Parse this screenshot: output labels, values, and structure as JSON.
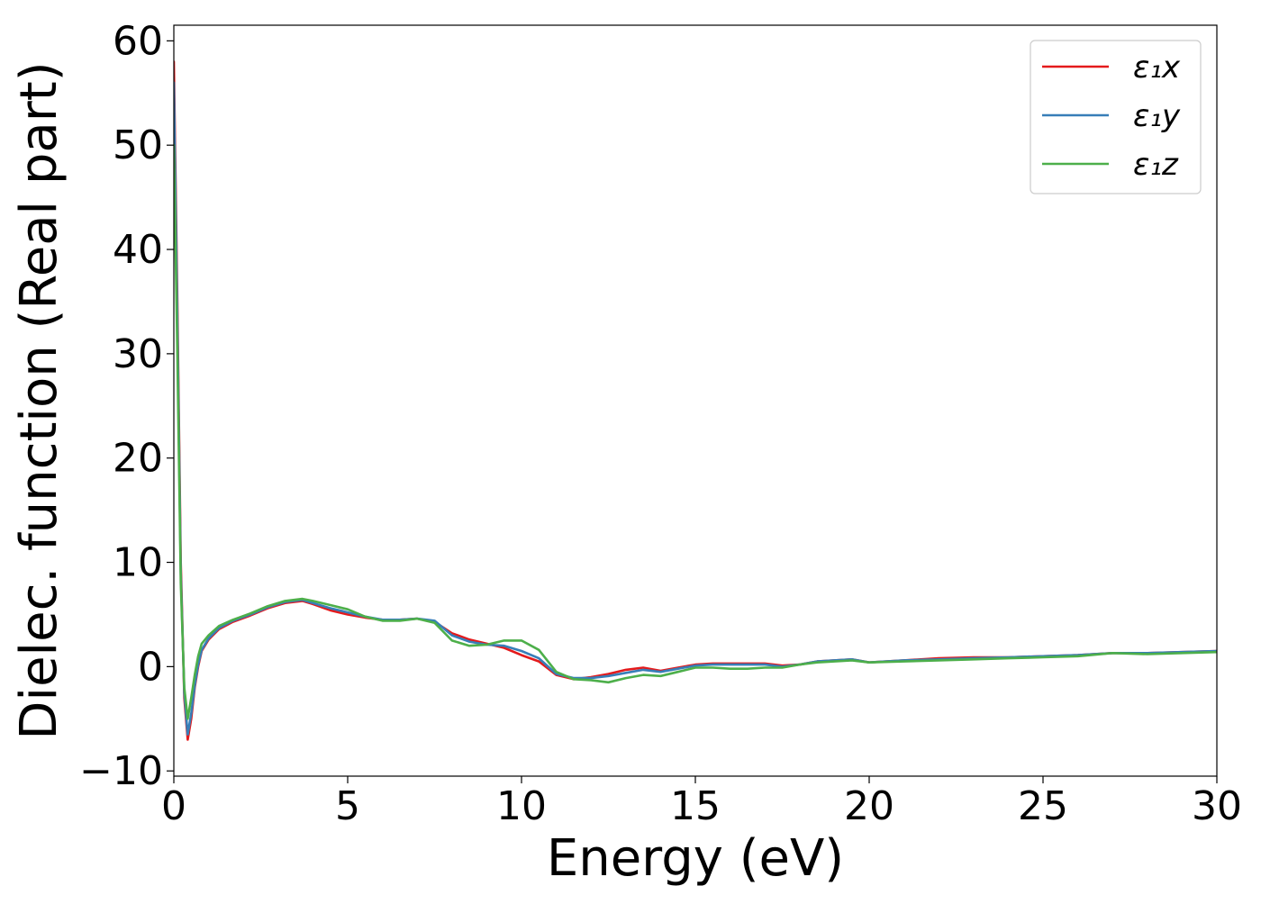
{
  "chart_data": {
    "type": "line",
    "xlabel": "Energy (eV)",
    "ylabel": "Dielec. function (Real part)",
    "xlim": [
      0,
      30
    ],
    "ylim": [
      -10.5,
      61.5
    ],
    "xticks": [
      0,
      5,
      10,
      15,
      20,
      25,
      30
    ],
    "yticks": [
      -10,
      0,
      10,
      20,
      30,
      40,
      50,
      60
    ],
    "xtick_labels": [
      "0",
      "5",
      "10",
      "15",
      "20",
      "25",
      "30"
    ],
    "ytick_labels": [
      "−10",
      "0",
      "10",
      "20",
      "30",
      "40",
      "50",
      "60"
    ],
    "grid": false,
    "legend_position": "top-right",
    "series": [
      {
        "name": "ε₁x",
        "color": "#e41a1c",
        "x": [
          0,
          0.1,
          0.2,
          0.3,
          0.4,
          0.5,
          0.6,
          0.7,
          0.8,
          1.0,
          1.3,
          1.7,
          2.2,
          2.7,
          3.2,
          3.7,
          4.0,
          4.5,
          5.0,
          5.5,
          6.0,
          6.5,
          7.0,
          7.5,
          8.0,
          8.5,
          9.0,
          9.5,
          10.0,
          10.5,
          11.0,
          11.5,
          12.0,
          12.5,
          13.0,
          13.5,
          14.0,
          14.5,
          15.0,
          15.5,
          16.0,
          16.5,
          17.0,
          17.5,
          18.0,
          18.5,
          19.0,
          19.5,
          20.0,
          21.0,
          22.0,
          23.0,
          24.0,
          25.0,
          26.0,
          27.0,
          28.0,
          29.0,
          30.0
        ],
        "y": [
          58,
          35,
          10,
          -3,
          -7,
          -5,
          -2,
          0,
          1.5,
          2.6,
          3.6,
          4.3,
          4.9,
          5.6,
          6.1,
          6.3,
          6.0,
          5.4,
          5.0,
          4.7,
          4.5,
          4.5,
          4.6,
          4.3,
          3.2,
          2.6,
          2.2,
          1.8,
          1.1,
          0.5,
          -0.8,
          -1.2,
          -1.0,
          -0.7,
          -0.3,
          -0.1,
          -0.4,
          -0.1,
          0.2,
          0.3,
          0.3,
          0.3,
          0.3,
          0.1,
          0.2,
          0.5,
          0.6,
          0.7,
          0.4,
          0.6,
          0.8,
          0.9,
          0.9,
          1.0,
          1.1,
          1.3,
          1.3,
          1.4,
          1.5
        ]
      },
      {
        "name": "ε₁y",
        "color": "#377eb8",
        "x": [
          0,
          0.1,
          0.2,
          0.3,
          0.4,
          0.5,
          0.6,
          0.7,
          0.8,
          1.0,
          1.3,
          1.7,
          2.2,
          2.7,
          3.2,
          3.7,
          4.0,
          4.5,
          5.0,
          5.5,
          6.0,
          6.5,
          7.0,
          7.5,
          8.0,
          8.5,
          9.0,
          9.5,
          10.0,
          10.5,
          11.0,
          11.5,
          12.0,
          12.5,
          13.0,
          13.5,
          14.0,
          14.5,
          15.0,
          15.5,
          16.0,
          16.5,
          17.0,
          17.5,
          18.0,
          18.5,
          19.0,
          19.5,
          20.0,
          21.0,
          22.0,
          23.0,
          24.0,
          25.0,
          26.0,
          27.0,
          28.0,
          29.0,
          30.0
        ],
        "y": [
          56,
          33,
          9,
          -2.5,
          -6.5,
          -4.5,
          -1.8,
          0.2,
          1.6,
          2.7,
          3.7,
          4.4,
          5.0,
          5.7,
          6.2,
          6.4,
          6.1,
          5.6,
          5.2,
          4.8,
          4.5,
          4.5,
          4.6,
          4.4,
          3.0,
          2.4,
          2.1,
          2.0,
          1.5,
          0.8,
          -0.7,
          -1.1,
          -1.1,
          -0.9,
          -0.6,
          -0.3,
          -0.5,
          -0.2,
          0.1,
          0.2,
          0.2,
          0.2,
          0.2,
          0.0,
          0.2,
          0.5,
          0.6,
          0.7,
          0.4,
          0.6,
          0.7,
          0.8,
          0.9,
          1.0,
          1.1,
          1.3,
          1.3,
          1.4,
          1.5
        ]
      },
      {
        "name": "ε₁z",
        "color": "#4daf4a",
        "x": [
          0,
          0.1,
          0.2,
          0.3,
          0.4,
          0.5,
          0.6,
          0.7,
          0.8,
          1.0,
          1.3,
          1.7,
          2.2,
          2.7,
          3.2,
          3.7,
          4.0,
          4.5,
          5.0,
          5.5,
          6.0,
          6.5,
          7.0,
          7.5,
          8.0,
          8.5,
          9.0,
          9.5,
          10.0,
          10.5,
          11.0,
          11.5,
          12.0,
          12.5,
          13.0,
          13.5,
          14.0,
          14.5,
          15.0,
          15.5,
          16.0,
          16.5,
          17.0,
          17.5,
          18.0,
          18.5,
          19.0,
          19.5,
          20.0,
          21.0,
          22.0,
          23.0,
          24.0,
          25.0,
          26.0,
          27.0,
          28.0,
          29.0,
          30.0
        ],
        "y": [
          50,
          30,
          8,
          -2,
          -5,
          -3,
          -0.8,
          1.0,
          2.2,
          3.0,
          3.9,
          4.5,
          5.1,
          5.8,
          6.3,
          6.5,
          6.3,
          5.9,
          5.5,
          4.8,
          4.4,
          4.4,
          4.6,
          4.2,
          2.5,
          2.0,
          2.1,
          2.5,
          2.5,
          1.6,
          -0.5,
          -1.2,
          -1.3,
          -1.5,
          -1.1,
          -0.8,
          -0.9,
          -0.5,
          -0.1,
          -0.1,
          -0.2,
          -0.2,
          -0.1,
          -0.1,
          0.2,
          0.4,
          0.5,
          0.6,
          0.4,
          0.5,
          0.6,
          0.7,
          0.8,
          0.9,
          1.0,
          1.3,
          1.2,
          1.3,
          1.4
        ]
      }
    ]
  }
}
